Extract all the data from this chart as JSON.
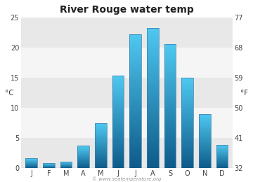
{
  "title": "River Rouge water temp",
  "months": [
    "J",
    "F",
    "M",
    "A",
    "M",
    "J",
    "J",
    "A",
    "S",
    "O",
    "N",
    "D"
  ],
  "values": [
    1.6,
    0.8,
    1.1,
    3.7,
    7.5,
    15.4,
    22.2,
    23.3,
    20.6,
    15.0,
    9.0,
    3.9
  ],
  "ylabel_left": "°C",
  "ylabel_right": "°F",
  "ylim_left": [
    0,
    25
  ],
  "yticks_left": [
    0,
    5,
    10,
    15,
    20,
    25
  ],
  "yticks_right": [
    32,
    41,
    50,
    59,
    68,
    77
  ],
  "bar_color_top": "#4ec8f0",
  "bar_color_bottom": "#0d5a8a",
  "background_color": "#ffffff",
  "plot_bg_color": "#f5f5f5",
  "band_color": "#e8e8e8",
  "watermark": "© www.seatemperature.org",
  "title_fontsize": 10,
  "tick_fontsize": 7,
  "label_fontsize": 7.5
}
